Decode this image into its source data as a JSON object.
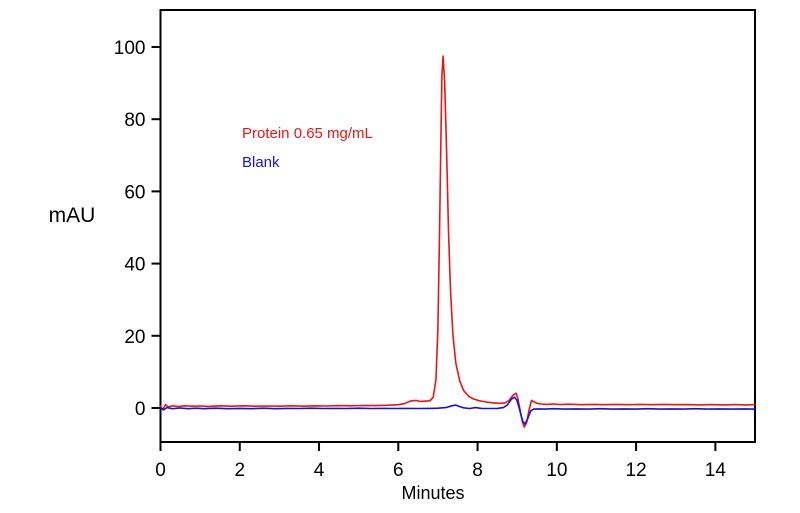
{
  "chart_data": {
    "type": "line",
    "title": "",
    "xlabel": "Minutes",
    "ylabel": "mAU",
    "xlim": [
      0,
      15
    ],
    "ylim": [
      -9.42,
      110.25
    ],
    "x_ticks": [
      0,
      2,
      4,
      6,
      8,
      10,
      12,
      14
    ],
    "y_ticks": [
      0,
      20,
      40,
      60,
      80,
      100
    ],
    "grid": false,
    "frame": true,
    "axis_color": "#000000",
    "legend_position": "inside-upper-left",
    "annotations": [
      {
        "text": "Protein 0.65 mg/mL",
        "color": "#ee1414",
        "x": 2.07,
        "y": 76
      },
      {
        "text": "Blank",
        "color": "#1414e0",
        "x": 2.07,
        "y": 68
      }
    ],
    "series": [
      {
        "id": "protein",
        "name": "Protein 0.65 mg/mL",
        "color": "#ee1414",
        "peak": {
          "time_min": 7.13,
          "height_mAU": 97.5
        },
        "points": [
          [
            0,
            0.5
          ],
          [
            0.06,
            -0.5
          ],
          [
            0.12,
            0.9
          ],
          [
            0.2,
            0.3
          ],
          [
            0.3,
            0.6
          ],
          [
            0.45,
            0.4
          ],
          [
            0.6,
            0.6
          ],
          [
            0.8,
            0.5
          ],
          [
            1.0,
            0.55
          ],
          [
            1.2,
            0.45
          ],
          [
            1.5,
            0.6
          ],
          [
            1.8,
            0.5
          ],
          [
            2.1,
            0.6
          ],
          [
            2.4,
            0.5
          ],
          [
            2.7,
            0.55
          ],
          [
            3.0,
            0.5
          ],
          [
            3.3,
            0.6
          ],
          [
            3.6,
            0.5
          ],
          [
            3.9,
            0.6
          ],
          [
            4.2,
            0.55
          ],
          [
            4.5,
            0.65
          ],
          [
            4.8,
            0.6
          ],
          [
            5.1,
            0.7
          ],
          [
            5.4,
            0.65
          ],
          [
            5.7,
            0.75
          ],
          [
            6.0,
            0.9
          ],
          [
            6.15,
            1.2
          ],
          [
            6.3,
            1.9
          ],
          [
            6.45,
            2.1
          ],
          [
            6.55,
            1.8
          ],
          [
            6.7,
            1.9
          ],
          [
            6.8,
            2.0
          ],
          [
            6.88,
            3.0
          ],
          [
            6.95,
            8.0
          ],
          [
            7.0,
            22
          ],
          [
            7.04,
            48
          ],
          [
            7.08,
            78
          ],
          [
            7.1,
            92
          ],
          [
            7.13,
            97.5
          ],
          [
            7.17,
            90
          ],
          [
            7.22,
            70
          ],
          [
            7.27,
            48
          ],
          [
            7.32,
            32
          ],
          [
            7.38,
            20
          ],
          [
            7.45,
            12.5
          ],
          [
            7.55,
            7.5
          ],
          [
            7.65,
            4.8
          ],
          [
            7.78,
            3.2
          ],
          [
            7.9,
            2.5
          ],
          [
            8.05,
            2.0
          ],
          [
            8.2,
            1.7
          ],
          [
            8.4,
            1.4
          ],
          [
            8.55,
            1.3
          ],
          [
            8.7,
            1.4
          ],
          [
            8.8,
            2.2
          ],
          [
            8.9,
            3.6
          ],
          [
            8.97,
            4.1
          ],
          [
            9.02,
            2.5
          ],
          [
            9.08,
            -1.0
          ],
          [
            9.13,
            -3.8
          ],
          [
            9.18,
            -5.3
          ],
          [
            9.24,
            -4.0
          ],
          [
            9.3,
            -0.5
          ],
          [
            9.36,
            2.1
          ],
          [
            9.43,
            1.7
          ],
          [
            9.5,
            1.3
          ],
          [
            9.6,
            1.1
          ],
          [
            9.75,
            1.0
          ],
          [
            9.9,
            1.1
          ],
          [
            10.1,
            0.95
          ],
          [
            10.3,
            1.05
          ],
          [
            10.6,
            0.9
          ],
          [
            10.9,
            1.0
          ],
          [
            11.2,
            0.9
          ],
          [
            11.5,
            1.0
          ],
          [
            11.8,
            0.9
          ],
          [
            12.1,
            1.0
          ],
          [
            12.4,
            0.9
          ],
          [
            12.7,
            1.0
          ],
          [
            13.0,
            0.9
          ],
          [
            13.3,
            0.95
          ],
          [
            13.6,
            0.85
          ],
          [
            13.9,
            0.95
          ],
          [
            14.2,
            0.85
          ],
          [
            14.5,
            0.95
          ],
          [
            14.75,
            0.85
          ],
          [
            15,
            0.9
          ]
        ]
      },
      {
        "id": "blank",
        "name": "Blank",
        "color": "#1414e0",
        "points": [
          [
            0,
            0.1
          ],
          [
            0.08,
            -0.5
          ],
          [
            0.16,
            0.1
          ],
          [
            0.3,
            -0.2
          ],
          [
            0.5,
            0.0
          ],
          [
            0.7,
            -0.2
          ],
          [
            0.9,
            -0.05
          ],
          [
            1.1,
            -0.2
          ],
          [
            1.4,
            -0.05
          ],
          [
            1.7,
            -0.2
          ],
          [
            2.0,
            -0.1
          ],
          [
            2.3,
            -0.2
          ],
          [
            2.6,
            -0.05
          ],
          [
            2.9,
            -0.2
          ],
          [
            3.2,
            -0.1
          ],
          [
            3.5,
            -0.15
          ],
          [
            3.8,
            -0.05
          ],
          [
            4.1,
            -0.15
          ],
          [
            4.4,
            -0.1
          ],
          [
            4.7,
            -0.15
          ],
          [
            5.0,
            -0.05
          ],
          [
            5.3,
            -0.15
          ],
          [
            5.6,
            -0.1
          ],
          [
            5.9,
            -0.15
          ],
          [
            6.2,
            -0.1
          ],
          [
            6.5,
            -0.15
          ],
          [
            6.8,
            -0.1
          ],
          [
            7.0,
            -0.05
          ],
          [
            7.2,
            0.1
          ],
          [
            7.35,
            0.6
          ],
          [
            7.45,
            0.8
          ],
          [
            7.55,
            0.4
          ],
          [
            7.65,
            0.05
          ],
          [
            7.8,
            -0.15
          ],
          [
            7.95,
            0.1
          ],
          [
            8.1,
            -0.1
          ],
          [
            8.3,
            -0.15
          ],
          [
            8.5,
            -0.1
          ],
          [
            8.65,
            0.1
          ],
          [
            8.75,
            0.8
          ],
          [
            8.85,
            2.4
          ],
          [
            8.93,
            3.0
          ],
          [
            8.99,
            2.2
          ],
          [
            9.05,
            0.0
          ],
          [
            9.1,
            -2.2
          ],
          [
            9.15,
            -3.9
          ],
          [
            9.2,
            -4.4
          ],
          [
            9.27,
            -2.8
          ],
          [
            9.34,
            -0.8
          ],
          [
            9.42,
            -0.3
          ],
          [
            9.55,
            -0.25
          ],
          [
            9.7,
            -0.3
          ],
          [
            9.9,
            -0.2
          ],
          [
            10.2,
            -0.3
          ],
          [
            10.5,
            -0.25
          ],
          [
            10.8,
            -0.3
          ],
          [
            11.1,
            -0.2
          ],
          [
            11.4,
            -0.3
          ],
          [
            11.7,
            -0.25
          ],
          [
            12.0,
            -0.3
          ],
          [
            12.3,
            -0.2
          ],
          [
            12.6,
            -0.3
          ],
          [
            12.9,
            -0.25
          ],
          [
            13.2,
            -0.3
          ],
          [
            13.5,
            -0.2
          ],
          [
            13.8,
            -0.3
          ],
          [
            14.1,
            -0.25
          ],
          [
            14.4,
            -0.3
          ],
          [
            14.7,
            -0.25
          ],
          [
            15,
            -0.3
          ]
        ]
      }
    ]
  }
}
